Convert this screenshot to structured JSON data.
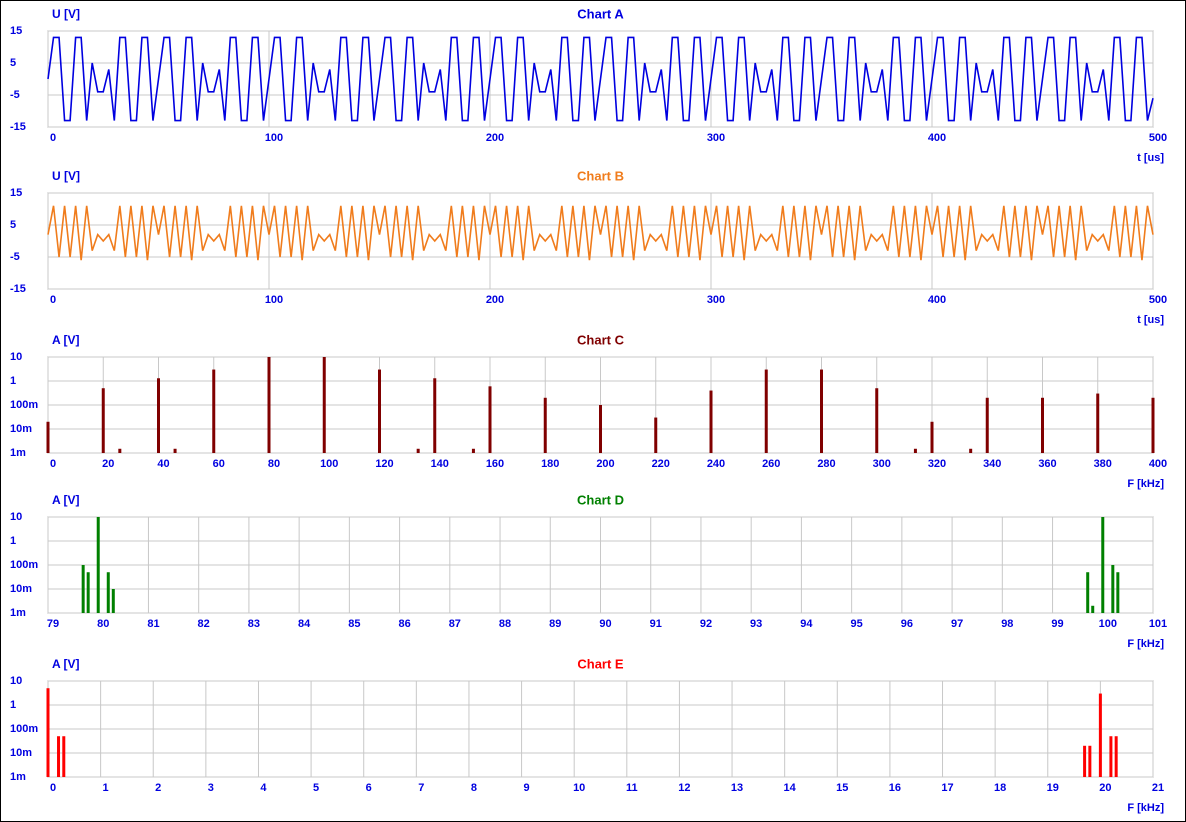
{
  "chart_data": [
    {
      "type": "line",
      "title": "Chart A",
      "ylabel": "U [V]",
      "xlabel": "t [us]",
      "color": "#0000e0",
      "grid": true,
      "log_y": false,
      "xlim": [
        0,
        500
      ],
      "ylim": [
        -15,
        15
      ],
      "xticks": [
        0,
        100,
        200,
        300,
        400,
        500
      ],
      "yticks": [
        -15,
        -5,
        5,
        15
      ],
      "x": [
        0,
        2.5,
        5,
        7.5,
        10,
        12.5,
        15,
        17.5,
        20,
        22.5,
        25,
        27.5,
        30,
        32.5,
        35,
        37.5,
        40,
        42.5,
        45,
        47.5,
        50,
        52.5,
        55,
        57.5,
        60,
        62.5,
        65,
        67.5,
        70,
        72.5,
        75,
        77.5,
        80,
        82.5,
        85,
        87.5,
        90,
        92.5,
        95,
        97.5,
        100,
        102.5,
        105,
        107.5,
        110,
        112.5,
        115,
        117.5,
        120,
        122.5,
        125,
        127.5,
        130,
        132.5,
        135,
        137.5,
        140,
        142.5,
        145,
        147.5,
        150,
        152.5,
        155,
        157.5,
        160,
        162.5,
        165,
        167.5,
        170,
        172.5,
        175,
        177.5,
        180,
        182.5,
        185,
        187.5,
        190,
        192.5,
        195,
        197.5,
        200,
        202.5,
        205,
        207.5,
        210,
        212.5,
        215,
        217.5,
        220,
        222.5,
        225,
        227.5,
        230,
        232.5,
        235,
        237.5,
        240,
        242.5,
        245,
        247.5,
        250,
        252.5,
        255,
        257.5,
        260,
        262.5,
        265,
        267.5,
        270,
        272.5,
        275,
        277.5,
        280,
        282.5,
        285,
        287.5,
        290,
        292.5,
        295,
        297.5,
        300,
        302.5,
        305,
        307.5,
        310,
        312.5,
        315,
        317.5,
        320,
        322.5,
        325,
        327.5,
        330,
        332.5,
        335,
        337.5,
        340,
        342.5,
        345,
        347.5,
        350,
        352.5,
        355,
        357.5,
        360,
        362.5,
        365,
        367.5,
        370,
        372.5,
        375,
        377.5,
        380,
        382.5,
        385,
        387.5,
        390,
        392.5,
        395,
        397.5,
        400,
        402.5,
        405,
        407.5,
        410,
        412.5,
        415,
        417.5,
        420,
        422.5,
        425,
        427.5,
        430,
        432.5,
        435,
        437.5,
        440,
        442.5,
        445,
        447.5,
        450,
        452.5,
        455,
        457.5,
        460,
        462.5,
        465,
        467.5,
        470,
        472.5,
        475,
        477.5,
        480,
        482.5,
        485,
        487.5,
        490,
        492.5,
        495,
        497.5,
        500
      ],
      "values": [
        0,
        13,
        13,
        -13,
        -13,
        13,
        13,
        -13,
        5,
        -4,
        -4,
        3,
        -13,
        13,
        13,
        -13,
        -13,
        13,
        13,
        -13,
        0,
        13,
        13,
        -13,
        -13,
        13,
        13,
        -13,
        5,
        -4,
        -4,
        3,
        -13,
        13,
        13,
        -13,
        -13,
        13,
        13,
        -13,
        0,
        13,
        13,
        -13,
        -13,
        13,
        13,
        -13,
        5,
        -4,
        -4,
        3,
        -13,
        13,
        13,
        -13,
        -13,
        13,
        13,
        -13,
        0,
        13,
        13,
        -13,
        -13,
        13,
        13,
        -13,
        5,
        -4,
        -4,
        3,
        -13,
        13,
        13,
        -13,
        -13,
        13,
        13,
        -13,
        0,
        13,
        13,
        -13,
        -13,
        13,
        13,
        -13,
        5,
        -4,
        -4,
        3,
        -13,
        13,
        13,
        -13,
        -13,
        13,
        13,
        -13,
        0,
        13,
        13,
        -13,
        -13,
        13,
        13,
        -13,
        5,
        -4,
        -4,
        3,
        -13,
        13,
        13,
        -13,
        -13,
        13,
        13,
        -13,
        0,
        13,
        13,
        -13,
        -13,
        13,
        13,
        -13,
        5,
        -4,
        -4,
        3,
        -13,
        13,
        13,
        -13,
        -13,
        13,
        13,
        -13,
        0,
        13,
        13,
        -13,
        -13,
        13,
        13,
        -13,
        5,
        -4,
        -4,
        3,
        -13,
        13,
        13,
        -13,
        -13,
        13,
        13,
        -13,
        0,
        13,
        13,
        -13,
        -13,
        13,
        13,
        -13,
        5,
        -4,
        -4,
        3,
        -13,
        13,
        13,
        -13,
        -13,
        13,
        13,
        -13,
        0,
        13,
        13,
        -13,
        -13,
        13,
        13,
        -13,
        5,
        -4,
        -4,
        3,
        -13,
        13,
        13,
        -13,
        -13,
        13,
        13,
        -13,
        -6
      ]
    },
    {
      "type": "line",
      "title": "Chart B",
      "ylabel": "U [V]",
      "xlabel": "t [us]",
      "color": "#f07c1c",
      "grid": true,
      "log_y": false,
      "xlim": [
        0,
        500
      ],
      "ylim": [
        -15,
        15
      ],
      "xticks": [
        0,
        100,
        200,
        300,
        400,
        500
      ],
      "yticks": [
        -15,
        -5,
        5,
        15
      ],
      "x": [
        0,
        2.5,
        5,
        7.5,
        10,
        12.5,
        15,
        17.5,
        20,
        22.5,
        25,
        27.5,
        30,
        32.5,
        35,
        37.5,
        40,
        42.5,
        45,
        47.5,
        50,
        52.5,
        55,
        57.5,
        60,
        62.5,
        65,
        67.5,
        70,
        72.5,
        75,
        77.5,
        80,
        82.5,
        85,
        87.5,
        90,
        92.5,
        95,
        97.5,
        100,
        102.5,
        105,
        107.5,
        110,
        112.5,
        115,
        117.5,
        120,
        122.5,
        125,
        127.5,
        130,
        132.5,
        135,
        137.5,
        140,
        142.5,
        145,
        147.5,
        150,
        152.5,
        155,
        157.5,
        160,
        162.5,
        165,
        167.5,
        170,
        172.5,
        175,
        177.5,
        180,
        182.5,
        185,
        187.5,
        190,
        192.5,
        195,
        197.5,
        200,
        202.5,
        205,
        207.5,
        210,
        212.5,
        215,
        217.5,
        220,
        222.5,
        225,
        227.5,
        230,
        232.5,
        235,
        237.5,
        240,
        242.5,
        245,
        247.5,
        250,
        252.5,
        255,
        257.5,
        260,
        262.5,
        265,
        267.5,
        270,
        272.5,
        275,
        277.5,
        280,
        282.5,
        285,
        287.5,
        290,
        292.5,
        295,
        297.5,
        300,
        302.5,
        305,
        307.5,
        310,
        312.5,
        315,
        317.5,
        320,
        322.5,
        325,
        327.5,
        330,
        332.5,
        335,
        337.5,
        340,
        342.5,
        345,
        347.5,
        350,
        352.5,
        355,
        357.5,
        360,
        362.5,
        365,
        367.5,
        370,
        372.5,
        375,
        377.5,
        380,
        382.5,
        385,
        387.5,
        390,
        392.5,
        395,
        397.5,
        400,
        402.5,
        405,
        407.5,
        410,
        412.5,
        415,
        417.5,
        420,
        422.5,
        425,
        427.5,
        430,
        432.5,
        435,
        437.5,
        440,
        442.5,
        445,
        447.5,
        450,
        452.5,
        455,
        457.5,
        460,
        462.5,
        465,
        467.5,
        470,
        472.5,
        475,
        477.5,
        480,
        482.5,
        485,
        487.5,
        490,
        492.5,
        495,
        497.5,
        500
      ],
      "values": [
        2,
        11,
        -5,
        11,
        -5,
        11,
        -6,
        11,
        -3,
        2,
        0,
        2,
        -3,
        11,
        -5,
        11,
        -5,
        11,
        -6,
        11,
        2,
        11,
        -5,
        11,
        -5,
        11,
        -6,
        11,
        -3,
        2,
        0,
        2,
        -3,
        11,
        -5,
        11,
        -5,
        11,
        -6,
        11,
        2,
        11,
        -5,
        11,
        -5,
        11,
        -6,
        11,
        -3,
        2,
        0,
        2,
        -3,
        11,
        -5,
        11,
        -5,
        11,
        -6,
        11,
        2,
        11,
        -5,
        11,
        -5,
        11,
        -6,
        11,
        -3,
        2,
        0,
        2,
        -3,
        11,
        -5,
        11,
        -5,
        11,
        -6,
        11,
        2,
        11,
        -5,
        11,
        -5,
        11,
        -6,
        11,
        -3,
        2,
        0,
        2,
        -3,
        11,
        -5,
        11,
        -5,
        11,
        -6,
        11,
        2,
        11,
        -5,
        11,
        -5,
        11,
        -6,
        11,
        -3,
        2,
        0,
        2,
        -3,
        11,
        -5,
        11,
        -5,
        11,
        -6,
        11,
        2,
        11,
        -5,
        11,
        -5,
        11,
        -6,
        11,
        -3,
        2,
        0,
        2,
        -3,
        11,
        -5,
        11,
        -5,
        11,
        -6,
        11,
        2,
        11,
        -5,
        11,
        -5,
        11,
        -6,
        11,
        -3,
        2,
        0,
        2,
        -3,
        11,
        -5,
        11,
        -5,
        11,
        -6,
        11,
        2,
        11,
        -5,
        11,
        -5,
        11,
        -6,
        11,
        -3,
        2,
        0,
        2,
        -3,
        11,
        -5,
        11,
        -5,
        11,
        -6,
        11,
        2,
        11,
        -5,
        11,
        -5,
        11,
        -6,
        11,
        -3,
        2,
        0,
        2,
        -3,
        11,
        -5,
        11,
        -5,
        11,
        -6,
        11,
        2
      ]
    },
    {
      "type": "bar",
      "title": "Chart C",
      "ylabel": "A [V]",
      "xlabel": "F [kHz]",
      "color": "#800000",
      "grid": true,
      "log_y": true,
      "xlim": [
        0,
        400
      ],
      "ylim": [
        0.001,
        10
      ],
      "xticks": [
        0,
        20,
        40,
        60,
        80,
        100,
        120,
        140,
        160,
        180,
        200,
        220,
        240,
        260,
        280,
        300,
        320,
        340,
        360,
        380,
        400
      ],
      "yticks": [
        {
          "value": 0.001,
          "label": "1m"
        },
        {
          "value": 0.01,
          "label": "10m"
        },
        {
          "value": 0.1,
          "label": "100m"
        },
        1,
        10
      ],
      "x": [
        0,
        20,
        26,
        40,
        46,
        60,
        80,
        100,
        120,
        134,
        140,
        154,
        160,
        180,
        200,
        220,
        240,
        260,
        280,
        300,
        314,
        320,
        334,
        340,
        360,
        380,
        400
      ],
      "values": [
        0.02,
        0.5,
        0.0015,
        1.3,
        0.0015,
        3,
        10,
        10,
        3,
        0.0015,
        1.3,
        0.0015,
        0.6,
        0.2,
        0.1,
        0.03,
        0.4,
        3,
        3,
        0.5,
        0.0015,
        0.02,
        0.0015,
        0.2,
        0.2,
        0.3,
        0.2
      ]
    },
    {
      "type": "bar",
      "title": "Chart D",
      "ylabel": "A [V]",
      "xlabel": "F [kHz]",
      "color": "#008000",
      "grid": true,
      "log_y": true,
      "xlim": [
        79,
        101
      ],
      "ylim": [
        0.001,
        10
      ],
      "xticks": [
        79,
        80,
        81,
        82,
        83,
        84,
        85,
        86,
        87,
        88,
        89,
        90,
        91,
        92,
        93,
        94,
        95,
        96,
        97,
        98,
        99,
        100,
        101
      ],
      "yticks": [
        {
          "value": 0.001,
          "label": "1m"
        },
        {
          "value": 0.01,
          "label": "10m"
        },
        {
          "value": 0.1,
          "label": "100m"
        },
        1,
        10
      ],
      "x": [
        79.7,
        79.8,
        80,
        80.2,
        80.3,
        99.7,
        99.8,
        100,
        100.2,
        100.3
      ],
      "values": [
        0.1,
        0.05,
        10,
        0.05,
        0.01,
        0.05,
        0.002,
        10,
        0.1,
        0.05
      ]
    },
    {
      "type": "bar",
      "title": "Chart E",
      "ylabel": "A [V]",
      "xlabel": "F [kHz]",
      "color": "#ff0000",
      "grid": true,
      "log_y": true,
      "xlim": [
        0,
        21
      ],
      "ylim": [
        0.001,
        10
      ],
      "xticks": [
        0,
        1,
        2,
        3,
        4,
        5,
        6,
        7,
        8,
        9,
        10,
        11,
        12,
        13,
        14,
        15,
        16,
        17,
        18,
        19,
        20,
        21
      ],
      "yticks": [
        {
          "value": 0.001,
          "label": "1m"
        },
        {
          "value": 0.01,
          "label": "10m"
        },
        {
          "value": 0.1,
          "label": "100m"
        },
        1,
        10
      ],
      "x": [
        0,
        0.2,
        0.3,
        19.7,
        19.8,
        20,
        20.2,
        20.3
      ],
      "values": [
        5,
        0.05,
        0.05,
        0.02,
        0.02,
        3,
        0.05,
        0.05
      ]
    }
  ]
}
